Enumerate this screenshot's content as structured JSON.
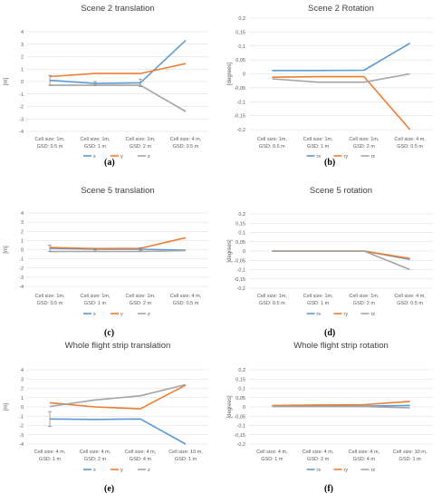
{
  "figure": {
    "panel_labels": [
      "(a)",
      "(b)",
      "(c)",
      "(d)",
      "(e)",
      "(f)"
    ]
  },
  "colors": {
    "x": "#5b9bd5",
    "y": "#ed7d31",
    "z": "#a5a5a5",
    "grid": "#d9d9d9"
  },
  "chart_data": [
    {
      "type": "line",
      "title": "Scene 2 translation",
      "ylabel": "[m]",
      "ylim": [
        -4,
        4
      ],
      "yticks": [
        "4",
        "3",
        "2",
        "1",
        "0",
        "-1",
        "-2",
        "-3",
        "-4"
      ],
      "categories": [
        "Cell size: 1m,\nGSD: 0.5 m",
        "Cell size: 1m,\nGSD: 1 m",
        "Cell size: 1m,\nGSD: 2 m",
        "Cell size: 4 m,\nGSD: 0.5 m"
      ],
      "series": [
        {
          "name": "x",
          "color": "#5b9bd5",
          "values": [
            0.1,
            -0.15,
            -0.1,
            3.3
          ]
        },
        {
          "name": "y",
          "color": "#ed7d31",
          "values": [
            0.4,
            0.65,
            0.65,
            1.45
          ]
        },
        {
          "name": "z",
          "color": "#a5a5a5",
          "values": [
            -0.3,
            -0.3,
            -0.3,
            -2.4
          ]
        }
      ],
      "error_bars": [
        {
          "series": 0,
          "index": 0,
          "err": 0.4
        },
        {
          "series": 0,
          "index": 1,
          "err": 0.15
        },
        {
          "series": 0,
          "index": 2,
          "err": 0.3
        }
      ],
      "legend_position": "bottom"
    },
    {
      "type": "line",
      "title": "Scene 2 Rotation",
      "ylabel": "[degrees]",
      "ylim": [
        -0.2,
        0.2
      ],
      "yticks": [
        "0,2",
        "0,15",
        "0,1",
        "0,05",
        "0",
        "-0,05",
        "-0,1",
        "-0,15",
        "-0,2"
      ],
      "categories": [
        "Cell size: 1m,\nGSD: 0.5 m",
        "Cell size: 1m,\nGSD: 1 m",
        "Cell size: 1m,\nGSD: 2 m",
        "Cell size: 4 m,\nGSD: 0.5 m"
      ],
      "series": [
        {
          "name": "rx",
          "color": "#5b9bd5",
          "values": [
            0.012,
            0.012,
            0.013,
            0.11
          ]
        },
        {
          "name": "ry",
          "color": "#ed7d31",
          "values": [
            -0.012,
            -0.01,
            -0.01,
            -0.2
          ]
        },
        {
          "name": "rz",
          "color": "#a5a5a5",
          "values": [
            -0.018,
            -0.03,
            -0.03,
            0.0
          ]
        }
      ],
      "error_bars": [],
      "legend_position": "bottom"
    },
    {
      "type": "line",
      "title": "Scene 5 translation",
      "ylabel": "[m]",
      "ylim": [
        -4,
        4
      ],
      "yticks": [
        "4",
        "3",
        "2",
        "1",
        "0",
        "-1",
        "-2",
        "-3",
        "-4"
      ],
      "categories": [
        "Cell size: 1m,\nGSD: 0.5 m",
        "Cell size: 1m,\nGSD: 1 m",
        "Cell size: 1m,\nGSD: 2 m",
        "Cell size: 4 m,\nGSD: 0.5 m"
      ],
      "series": [
        {
          "name": "x",
          "color": "#5b9bd5",
          "values": [
            0.15,
            0.05,
            0.05,
            -0.05
          ]
        },
        {
          "name": "y",
          "color": "#ed7d31",
          "values": [
            0.25,
            0.12,
            0.15,
            1.3
          ]
        },
        {
          "name": "z",
          "color": "#a5a5a5",
          "values": [
            -0.2,
            -0.2,
            -0.2,
            -0.1
          ]
        }
      ],
      "error_bars": [
        {
          "series": 0,
          "index": 0,
          "err": 0.35
        },
        {
          "series": 0,
          "index": 1,
          "err": 0.1
        },
        {
          "series": 0,
          "index": 2,
          "err": 0.15
        }
      ],
      "legend_position": "bottom"
    },
    {
      "type": "line",
      "title": "Scene 5 rotation",
      "ylabel": "[degrees]",
      "ylim": [
        -0.2,
        0.2
      ],
      "yticks": [
        "0,2",
        "0,15",
        "0,1",
        "0,05",
        "0",
        "-0,05",
        "-0,1",
        "-0,15",
        "-0,2"
      ],
      "categories": [
        "Cell size: 1m,\nGSD: 0.5 m",
        "Cell size: 1m,\nGSD: 1 m",
        "Cell size: 1m,\nGSD: 2 m",
        "Cell size: 4 m,\nGSD: 0.5 m"
      ],
      "series": [
        {
          "name": "rx",
          "color": "#5b9bd5",
          "values": [
            0.0,
            0.0,
            0.0,
            -0.045
          ]
        },
        {
          "name": "ry",
          "color": "#ed7d31",
          "values": [
            0.0,
            0.0,
            0.0,
            -0.04
          ]
        },
        {
          "name": "rz",
          "color": "#a5a5a5",
          "values": [
            0.0,
            0.0,
            0.0,
            -0.1
          ]
        }
      ],
      "error_bars": [],
      "legend_position": "bottom"
    },
    {
      "type": "line",
      "title": "Whole flight strip translation",
      "ylabel": "[m]",
      "ylim": [
        -4,
        4
      ],
      "yticks": [
        "4",
        "3",
        "2",
        "1",
        "0",
        "-1",
        "-2",
        "-3",
        "-4"
      ],
      "categories": [
        "Cell size: 4 m,\nGSD: 1 m",
        "Cell size: 4 m,\nGSD: 2 m",
        "Cell size: 4 m,\nGSD: 4 m",
        "Cell size: 10 m,\nGSD: 1 m"
      ],
      "series": [
        {
          "name": "x",
          "color": "#5b9bd5",
          "values": [
            -1.3,
            -1.35,
            -1.3,
            -4.0
          ]
        },
        {
          "name": "y",
          "color": "#ed7d31",
          "values": [
            0.45,
            0.0,
            -0.2,
            2.35
          ]
        },
        {
          "name": "z",
          "color": "#a5a5a5",
          "values": [
            0.05,
            0.75,
            1.2,
            2.4
          ]
        }
      ],
      "error_bars": [
        {
          "series": 0,
          "index": 0,
          "err": 0.8
        }
      ],
      "legend_position": "bottom"
    },
    {
      "type": "line",
      "title": "Whole flight strip rotation",
      "ylabel": "[degrees]",
      "ylim": [
        -0.2,
        0.2
      ],
      "yticks": [
        "0,2",
        "0,15",
        "0,1",
        "0,05",
        "0",
        "-0,05",
        "-0,1",
        "-0,15",
        "-0,2"
      ],
      "categories": [
        "Cell size: 4 m,\nGSD: 1 m",
        "Cell size: 4 m,\nGSD: 2 m",
        "Cell size: 4 m,\nGSD: 4 m",
        "Cell size: 10 m,\nGSD: 1 m"
      ],
      "series": [
        {
          "name": "rx",
          "color": "#5b9bd5",
          "values": [
            0.005,
            0.005,
            0.005,
            0.008
          ]
        },
        {
          "name": "ry",
          "color": "#ed7d31",
          "values": [
            0.008,
            0.01,
            0.012,
            0.03
          ]
        },
        {
          "name": "rz",
          "color": "#a5a5a5",
          "values": [
            0.002,
            0.002,
            0.002,
            -0.005
          ]
        }
      ],
      "error_bars": [],
      "legend_position": "bottom"
    }
  ]
}
